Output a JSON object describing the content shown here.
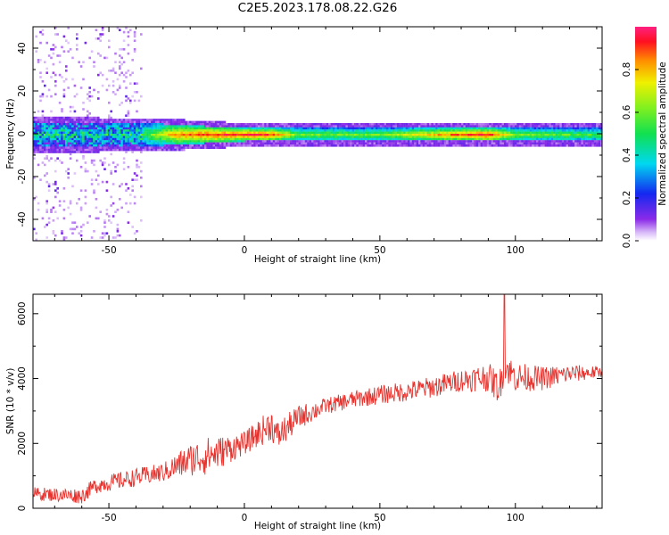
{
  "title": "C2E5.2023.178.08.22.G26",
  "chart_data": [
    {
      "type": "heatmap",
      "title": "",
      "xlabel": "Height of straight line (km)",
      "ylabel": "Frequency (Hz)",
      "xlim": [
        -78,
        132
      ],
      "ylim": [
        -50,
        50
      ],
      "xticks": [
        -50,
        0,
        50,
        100
      ],
      "yticks": [
        -40,
        -20,
        0,
        20,
        40
      ],
      "colorbar": {
        "label": "Normalized spectral amplitude",
        "range": [
          0,
          1
        ],
        "ticks": [
          "0.0",
          "0.2",
          "0.4",
          "0.6",
          "0.8"
        ],
        "colormap": "rainbow"
      },
      "band": {
        "center_hz": 0,
        "halfwidth_hz": [
          {
            "x": -78,
            "hz": 6
          },
          {
            "x": -30,
            "hz": 5
          },
          {
            "x": 0,
            "hz": 3
          },
          {
            "x": 132,
            "hz": 3
          }
        ],
        "amplitude_profile": [
          {
            "x": -78,
            "a": 0.4
          },
          {
            "x": -40,
            "a": 0.45
          },
          {
            "x": -25,
            "a": 0.85
          },
          {
            "x": -15,
            "a": 0.9
          },
          {
            "x": 0,
            "a": 0.95
          },
          {
            "x": 10,
            "a": 0.9
          },
          {
            "x": 20,
            "a": 0.6
          },
          {
            "x": 50,
            "a": 0.6
          },
          {
            "x": 75,
            "a": 0.85
          },
          {
            "x": 90,
            "a": 0.95
          },
          {
            "x": 100,
            "a": 0.6
          },
          {
            "x": 132,
            "a": 0.55
          }
        ],
        "noise_region_x": [
          -78,
          -38
        ]
      }
    },
    {
      "type": "line",
      "title": "",
      "xlabel": "Height of straight line (km)",
      "ylabel": "SNR (10 * v/v)",
      "xlim": [
        -78,
        132
      ],
      "ylim": [
        0,
        6600
      ],
      "xticks": [
        -50,
        0,
        50,
        100
      ],
      "yticks": [
        0,
        2000,
        4000,
        6000
      ],
      "series": [
        {
          "color": "#e8322d",
          "trend": [
            {
              "x": -78,
              "y": 450
            },
            {
              "x": -60,
              "y": 380
            },
            {
              "x": -55,
              "y": 700
            },
            {
              "x": -40,
              "y": 950
            },
            {
              "x": -30,
              "y": 1100
            },
            {
              "x": -20,
              "y": 1500
            },
            {
              "x": -10,
              "y": 1700
            },
            {
              "x": 0,
              "y": 2000
            },
            {
              "x": 5,
              "y": 2300
            },
            {
              "x": 10,
              "y": 2600
            },
            {
              "x": 12,
              "y": 2200
            },
            {
              "x": 20,
              "y": 2800
            },
            {
              "x": 30,
              "y": 3150
            },
            {
              "x": 40,
              "y": 3350
            },
            {
              "x": 50,
              "y": 3500
            },
            {
              "x": 60,
              "y": 3600
            },
            {
              "x": 70,
              "y": 3750
            },
            {
              "x": 80,
              "y": 3950
            },
            {
              "x": 90,
              "y": 4050
            },
            {
              "x": 94,
              "y": 3700
            },
            {
              "x": 96,
              "y": 4400
            },
            {
              "x": 100,
              "y": 4050
            },
            {
              "x": 110,
              "y": 4000
            },
            {
              "x": 120,
              "y": 4150
            },
            {
              "x": 132,
              "y": 4200
            }
          ],
          "noise_amplitude": [
            {
              "x": -78,
              "y": 200
            },
            {
              "x": -30,
              "y": 300
            },
            {
              "x": -15,
              "y": 600
            },
            {
              "x": 0,
              "y": 350
            },
            {
              "x": 10,
              "y": 500
            },
            {
              "x": 30,
              "y": 250
            },
            {
              "x": 80,
              "y": 350
            },
            {
              "x": 95,
              "y": 500
            },
            {
              "x": 132,
              "y": 180
            }
          ],
          "spike": {
            "x": 96,
            "y": 6600
          }
        }
      ]
    }
  ]
}
